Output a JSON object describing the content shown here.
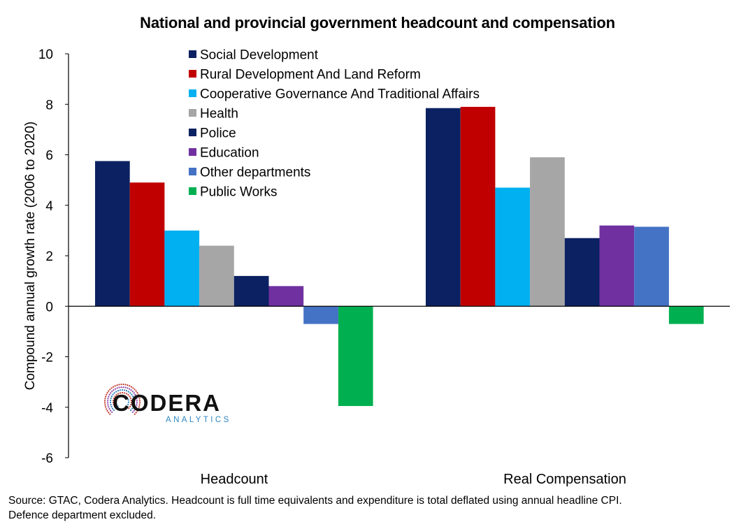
{
  "chart_data": {
    "type": "bar",
    "title": "National and provincial government headcount and compensation",
    "ylabel": "Compound annual growth rate (2006 to 2020)",
    "xlabel": "",
    "ylim": [
      -6,
      10
    ],
    "yticks": [
      -6,
      -4,
      -2,
      0,
      2,
      4,
      6,
      8,
      10
    ],
    "categories": [
      "Headcount",
      "Real Compensation"
    ],
    "legend_position": "top-center",
    "grid": false,
    "series": [
      {
        "name": "Social Development",
        "color": "#0b2161",
        "values": [
          5.75,
          7.85
        ]
      },
      {
        "name": "Rural Development And Land Reform",
        "color": "#c00000",
        "values": [
          4.9,
          7.9
        ]
      },
      {
        "name": "Cooperative Governance And Traditional Affairs",
        "color": "#00b0f0",
        "values": [
          3.0,
          4.7
        ]
      },
      {
        "name": "Health",
        "color": "#a6a6a6",
        "values": [
          2.4,
          5.9
        ]
      },
      {
        "name": "Police",
        "color": "#0b2161",
        "values": [
          1.2,
          2.7
        ]
      },
      {
        "name": "Education",
        "color": "#7030a0",
        "values": [
          0.8,
          3.2
        ]
      },
      {
        "name": "Other departments",
        "color": "#4472c4",
        "values": [
          -0.7,
          3.15
        ]
      },
      {
        "name": "Public Works",
        "color": "#00b050",
        "values": [
          -3.95,
          -0.7
        ]
      }
    ]
  },
  "logo": {
    "name": "CODERA",
    "tagline": "ANALYTICS"
  },
  "footer": {
    "source_line1": "Source: GTAC, Codera Analytics. Headcount is full time equivalents and expenditure is total deflated using annual headline CPI.",
    "source_line2": "Defence department excluded."
  }
}
